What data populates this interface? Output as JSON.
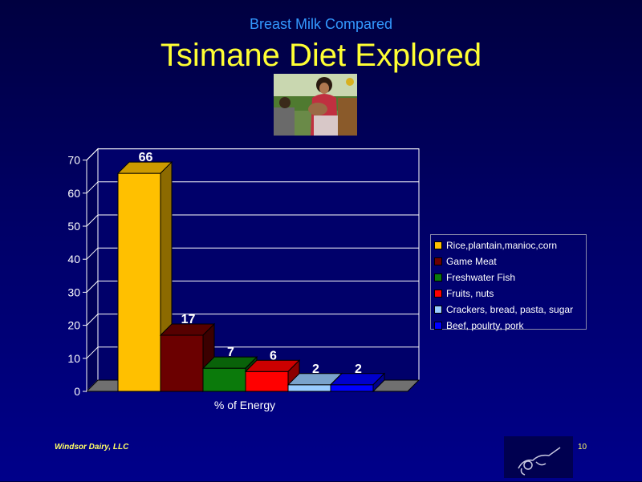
{
  "slide": {
    "subtitle": "Breast Milk Compared",
    "title": "Tsimane Diet Explored",
    "footer": "Windsor Dairy, LLC",
    "page_number": "10",
    "photo_icon": "mother-breastfeeding-photo",
    "logo_icon": "windsor-dairy-logo"
  },
  "chart_data": {
    "type": "bar",
    "title": "",
    "xlabel": "% of Energy",
    "ylabel": "",
    "ylim": [
      0,
      70
    ],
    "yticks": [
      "0",
      "10",
      "20",
      "30",
      "40",
      "50",
      "60",
      "70"
    ],
    "grid": true,
    "legend_position": "right",
    "series": [
      {
        "name": "Rice,plantain,manioc,corn",
        "value": 66,
        "label": "66",
        "color": "#ffc000"
      },
      {
        "name": "Game Meat",
        "value": 17,
        "label": "17",
        "color": "#6b0000"
      },
      {
        "name": "Freshwater Fish",
        "value": 7,
        "label": "7",
        "color": "#0b7a0b"
      },
      {
        "name": "Fruits, nuts",
        "value": 6,
        "label": "6",
        "color": "#ff0000"
      },
      {
        "name": "Crackers, bread, pasta, sugar",
        "value": 2,
        "label": "2",
        "color": "#99ccff"
      },
      {
        "name": "Beef, poulrty, pork",
        "value": 2,
        "label": "2",
        "color": "#0000ff"
      }
    ]
  }
}
